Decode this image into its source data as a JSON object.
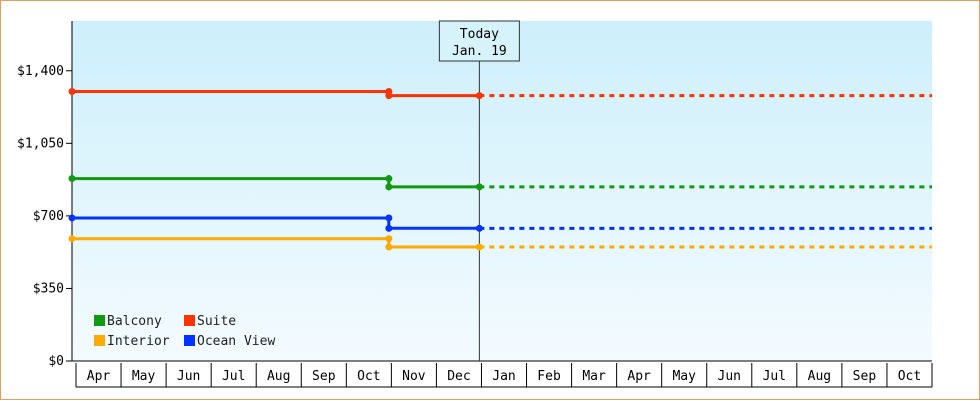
{
  "chart_data": {
    "type": "line",
    "subtype": "step",
    "y_ticks": [
      "$0",
      "$350",
      "$700",
      "$1,050",
      "$1,400"
    ],
    "y_tick_values": [
      0,
      350,
      700,
      1050,
      1400
    ],
    "ylim": [
      0,
      1640
    ],
    "x_months": [
      "Apr",
      "May",
      "Jun",
      "Jul",
      "Aug",
      "Sep",
      "Oct",
      "Nov",
      "Dec",
      "Jan",
      "Feb",
      "Mar",
      "Apr",
      "May",
      "Jun",
      "Jul",
      "Aug",
      "Sep",
      "Oct"
    ],
    "xlim_month_index": [
      0,
      19
    ],
    "today": {
      "line1": "Today",
      "line2": "Jan. 19",
      "month_index": 9.0
    },
    "background_gradient": [
      "#cdeffb",
      "#f4fbff"
    ],
    "legend_position": "bottom-left",
    "series": [
      {
        "name": "Suite",
        "color": "#ff3300",
        "points": [
          {
            "m": 0,
            "v": 1300
          },
          {
            "m": 7.0,
            "v": 1300
          },
          {
            "m": 7.0,
            "v": 1280
          },
          {
            "m": 9.0,
            "v": 1280
          }
        ],
        "projected_to": 19
      },
      {
        "name": "Balcony",
        "color": "#119911",
        "points": [
          {
            "m": 0,
            "v": 880
          },
          {
            "m": 7.0,
            "v": 880
          },
          {
            "m": 7.0,
            "v": 840
          },
          {
            "m": 9.0,
            "v": 840
          }
        ],
        "projected_to": 19
      },
      {
        "name": "Ocean View",
        "color": "#0033ff",
        "points": [
          {
            "m": 0,
            "v": 690
          },
          {
            "m": 7.0,
            "v": 690
          },
          {
            "m": 7.0,
            "v": 640
          },
          {
            "m": 9.0,
            "v": 640
          }
        ],
        "projected_to": 19
      },
      {
        "name": "Interior",
        "color": "#ffaa00",
        "points": [
          {
            "m": 0,
            "v": 590
          },
          {
            "m": 7.0,
            "v": 590
          },
          {
            "m": 7.0,
            "v": 550
          },
          {
            "m": 9.0,
            "v": 550
          }
        ],
        "projected_to": 19
      }
    ],
    "legend": [
      {
        "name": "Balcony",
        "color": "#119911"
      },
      {
        "name": "Suite",
        "color": "#ff3300"
      },
      {
        "name": "Interior",
        "color": "#ffaa00"
      },
      {
        "name": "Ocean View",
        "color": "#0033ff"
      }
    ]
  }
}
